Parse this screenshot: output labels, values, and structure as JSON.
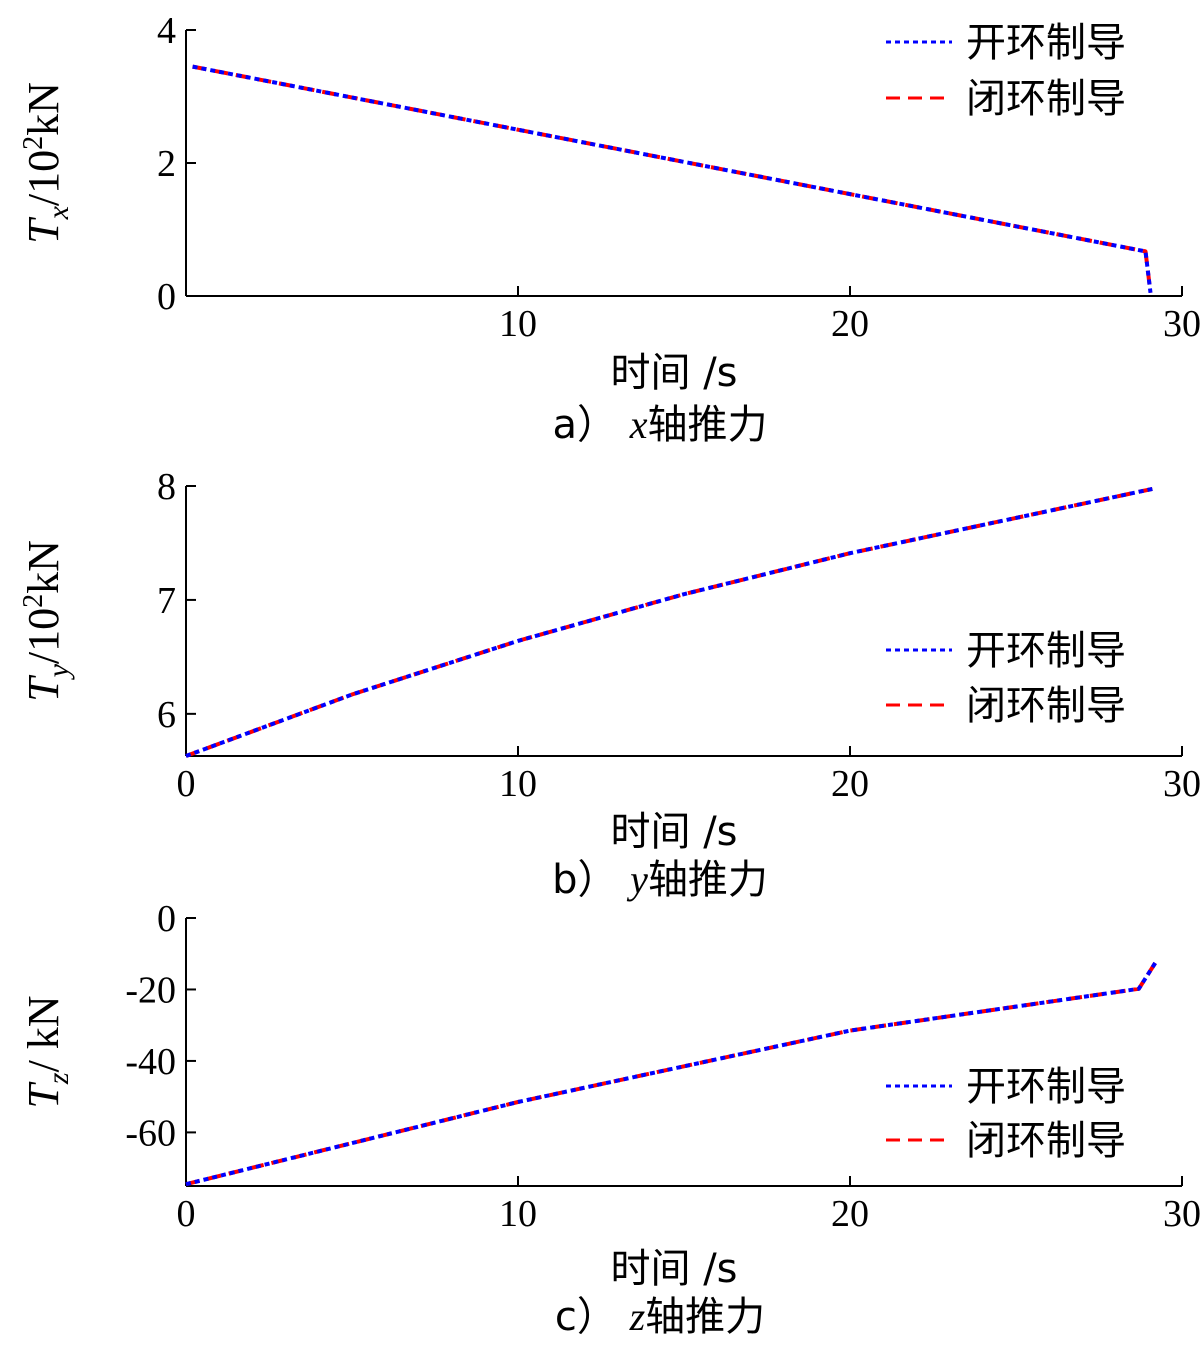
{
  "chart_data": [
    {
      "type": "line",
      "caption": {
        "letter": "a）",
        "var": "x",
        "text": "轴推力"
      },
      "ylabel": {
        "sym": "T",
        "sub": "x",
        "unit_pre": "/10",
        "unit_sup": "2",
        "unit_post": "kN"
      },
      "xlabel": "时间 /s",
      "xlim": [
        0,
        30
      ],
      "ylim": [
        0,
        4
      ],
      "x_ticks": [
        10,
        20,
        30
      ],
      "y_ticks": [
        0,
        2,
        4
      ],
      "legend_position": "top-right",
      "series": [
        {
          "name": "开环制导",
          "color": "#0000ff",
          "style": "dotted",
          "x": [
            0.2,
            28.9,
            29.05
          ],
          "y": [
            3.45,
            0.67,
            0.05
          ]
        },
        {
          "name": "闭环制导",
          "color": "#ff0000",
          "style": "dashed",
          "x": [
            0.2,
            28.9,
            29.05
          ],
          "y": [
            3.45,
            0.67,
            0.05
          ]
        }
      ]
    },
    {
      "type": "line",
      "caption": {
        "letter": "b）",
        "var": "y",
        "text": "轴推力"
      },
      "ylabel": {
        "sym": "T",
        "sub": "y",
        "unit_pre": "/10",
        "unit_sup": "2",
        "unit_post": "kN"
      },
      "xlabel": "时间 /s",
      "xlim": [
        0,
        30
      ],
      "ylim": [
        5.63,
        8
      ],
      "x_ticks": [
        0,
        10,
        20,
        30
      ],
      "y_ticks": [
        6,
        7,
        8
      ],
      "legend_position": "right",
      "series": [
        {
          "name": "开环制导",
          "color": "#0000ff",
          "style": "dotted",
          "x": [
            0,
            5,
            10,
            15,
            20,
            25,
            29.2
          ],
          "y": [
            5.63,
            6.17,
            6.64,
            7.05,
            7.41,
            7.72,
            7.98
          ]
        },
        {
          "name": "闭环制导",
          "color": "#ff0000",
          "style": "dashed",
          "x": [
            0,
            5,
            10,
            15,
            20,
            25,
            29.2
          ],
          "y": [
            5.63,
            6.17,
            6.64,
            7.05,
            7.41,
            7.72,
            7.98
          ]
        }
      ]
    },
    {
      "type": "line",
      "caption": {
        "letter": "c）",
        "var": "z",
        "text": "轴推力"
      },
      "ylabel": {
        "sym": "T",
        "sub": "z",
        "unit_pre": "/ ",
        "unit_sup": "",
        "unit_post": "kN"
      },
      "xlabel": "时间 /s",
      "xlim": [
        0,
        30
      ],
      "ylim": [
        -75,
        0
      ],
      "x_ticks": [
        0,
        10,
        20,
        30
      ],
      "y_ticks": [
        0,
        -20,
        -40,
        -60
      ],
      "legend_position": "right",
      "series": [
        {
          "name": "开环制导",
          "color": "#0000ff",
          "style": "dotted",
          "x": [
            0,
            10,
            20,
            28.7,
            29.2
          ],
          "y": [
            -74.5,
            -51.5,
            -31.5,
            -19.8,
            -12.5
          ]
        },
        {
          "name": "闭环制导",
          "color": "#ff0000",
          "style": "dashed",
          "x": [
            0,
            10,
            20,
            28.7,
            29.2
          ],
          "y": [
            -74.5,
            -51.5,
            -31.5,
            -19.8,
            -12.5
          ]
        }
      ]
    }
  ]
}
